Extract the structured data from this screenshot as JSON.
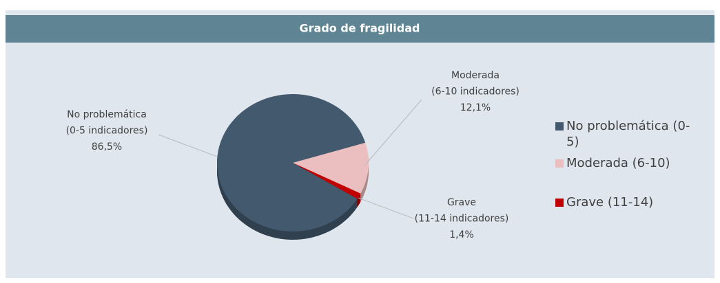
{
  "chart_data": {
    "type": "pie",
    "title": "Grado de fragilidad",
    "categories": [
      "No problemática (0-5)",
      "Moderada (6-10)",
      "Grave (11-14)"
    ],
    "label_lines": [
      [
        "No problemática",
        "(0-5 indicadores)"
      ],
      [
        "Moderada",
        "(6-10 indicadores)"
      ],
      [
        "Grave",
        "(11-14 indicadores)"
      ]
    ],
    "values": [
      86.5,
      12.1,
      1.4
    ],
    "value_labels": [
      "86,5%",
      "12,1%",
      "1,4%"
    ],
    "colors": [
      "#43596e",
      "#ebbfbf",
      "#c00000"
    ],
    "legend": "right"
  }
}
